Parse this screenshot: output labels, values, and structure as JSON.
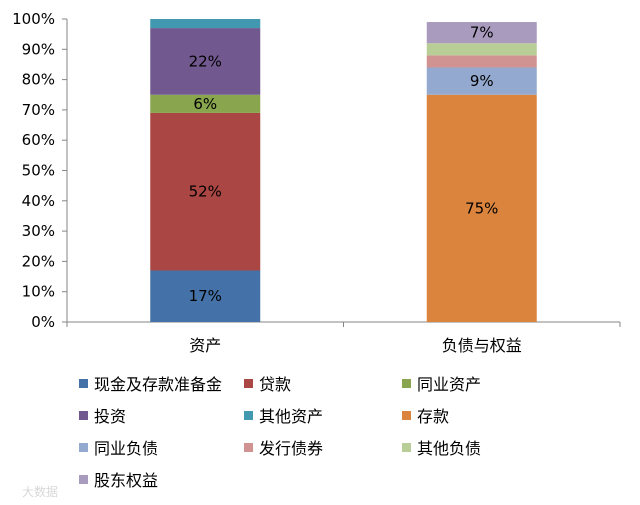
{
  "chart_data": {
    "type": "bar",
    "stacked": true,
    "categories": [
      "资产",
      "负债与权益"
    ],
    "ylim": [
      0,
      100
    ],
    "yticks": [
      "0%",
      "10%",
      "20%",
      "30%",
      "40%",
      "50%",
      "60%",
      "70%",
      "80%",
      "90%",
      "100%"
    ],
    "grid": false,
    "legend_position": "bottom",
    "series": [
      {
        "name": "现金及存款准备金",
        "color": "#4472a8",
        "values": [
          17,
          0
        ],
        "labels": [
          "17%",
          ""
        ]
      },
      {
        "name": "贷款",
        "color": "#aa4643",
        "values": [
          52,
          0
        ],
        "labels": [
          "52%",
          ""
        ]
      },
      {
        "name": "同业资产",
        "color": "#89a54e",
        "values": [
          6,
          0
        ],
        "labels": [
          "6%",
          ""
        ]
      },
      {
        "name": "投资",
        "color": "#71588f",
        "values": [
          22,
          0
        ],
        "labels": [
          "22%",
          ""
        ]
      },
      {
        "name": "其他资产",
        "color": "#4198af",
        "values": [
          3,
          0
        ],
        "labels": [
          "",
          ""
        ]
      },
      {
        "name": "存款",
        "color": "#db843d",
        "values": [
          0,
          75
        ],
        "labels": [
          "",
          "75%"
        ]
      },
      {
        "name": "同业负债",
        "color": "#93a9cf",
        "values": [
          0,
          9
        ],
        "labels": [
          "",
          "9%"
        ]
      },
      {
        "name": "发行债券",
        "color": "#d19392",
        "values": [
          0,
          4
        ],
        "labels": [
          "",
          ""
        ]
      },
      {
        "name": "其他负债",
        "color": "#b9cd96",
        "values": [
          0,
          4
        ],
        "labels": [
          "",
          ""
        ]
      },
      {
        "name": "股东权益",
        "color": "#a99bbd",
        "values": [
          0,
          7
        ],
        "labels": [
          "",
          "7%"
        ]
      }
    ]
  },
  "watermark": "大数据"
}
